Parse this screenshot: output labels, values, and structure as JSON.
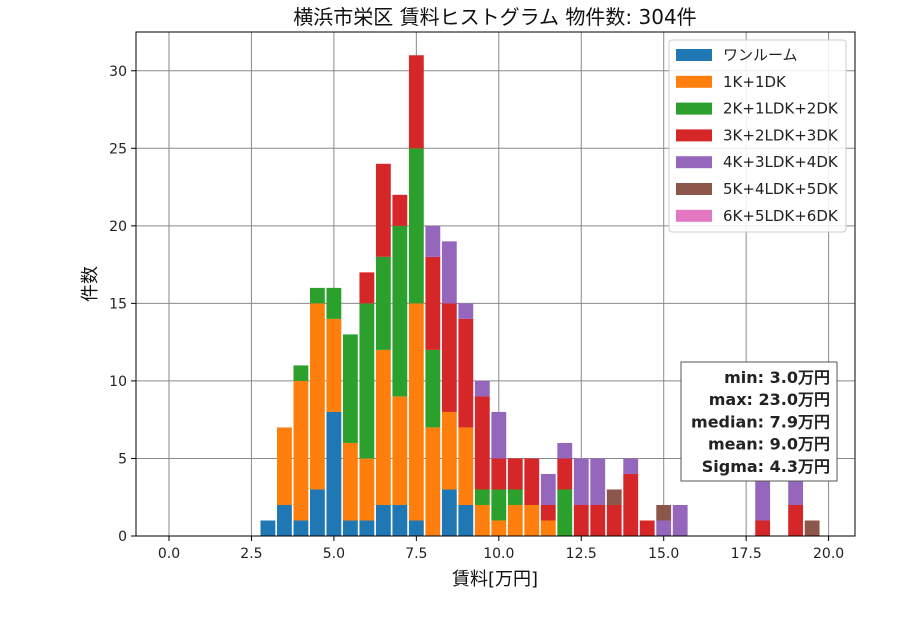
{
  "chart_data": {
    "type": "bar",
    "stacked": true,
    "title": "横浜市栄区 賃料ヒストグラム 物件数: 304件",
    "xlabel": "賃料[万円]",
    "ylabel": "件数",
    "xlim": [
      -1.0,
      20.8
    ],
    "ylim": [
      0,
      32.5
    ],
    "bin_width": 0.5,
    "grid": true,
    "legend_position": "top-right",
    "xticks": [
      0.0,
      2.5,
      5.0,
      7.5,
      10.0,
      12.5,
      15.0,
      17.5,
      20.0
    ],
    "xtick_labels": [
      "0.0",
      "2.5",
      "5.0",
      "7.5",
      "10.0",
      "12.5",
      "15.0",
      "17.5",
      "20.0"
    ],
    "yticks": [
      0,
      5,
      10,
      15,
      20,
      25,
      30
    ],
    "ytick_labels": [
      "0",
      "5",
      "10",
      "15",
      "20",
      "25",
      "30"
    ],
    "x": [
      3.0,
      3.5,
      4.0,
      4.5,
      5.0,
      5.5,
      6.0,
      6.5,
      7.0,
      7.5,
      8.0,
      8.5,
      9.0,
      9.5,
      10.0,
      10.5,
      11.0,
      11.5,
      12.0,
      12.5,
      13.0,
      13.5,
      14.0,
      14.5,
      15.0,
      15.5,
      18.0,
      19.0,
      19.5
    ],
    "series": [
      {
        "name": "ワンルーム",
        "color": "#1f77b4",
        "values": [
          1,
          2,
          1,
          3,
          8,
          1,
          1,
          2,
          2,
          1,
          0,
          3,
          2,
          0,
          0,
          0,
          0,
          0,
          0,
          0,
          0,
          0,
          0,
          0,
          0,
          0,
          0,
          0,
          0
        ]
      },
      {
        "name": "1K+1DK",
        "color": "#ff7f0e",
        "values": [
          0,
          5,
          9,
          12,
          6,
          5,
          4,
          10,
          7,
          14,
          7,
          5,
          5,
          2,
          1,
          2,
          2,
          1,
          0,
          0,
          0,
          0,
          0,
          0,
          0,
          0,
          0,
          0,
          0
        ]
      },
      {
        "name": "2K+1LDK+2DK",
        "color": "#2ca02c",
        "values": [
          0,
          0,
          1,
          1,
          2,
          7,
          10,
          6,
          11,
          10,
          5,
          0,
          0,
          1,
          2,
          1,
          0,
          0,
          3,
          0,
          0,
          0,
          0,
          0,
          0,
          0,
          0,
          0,
          0
        ]
      },
      {
        "name": "3K+2LDK+3DK",
        "color": "#d62728",
        "values": [
          0,
          0,
          0,
          0,
          0,
          0,
          2,
          6,
          2,
          6,
          6,
          7,
          7,
          6,
          2,
          2,
          3,
          1,
          2,
          2,
          2,
          2,
          4,
          1,
          0,
          0,
          1,
          2,
          0
        ]
      },
      {
        "name": "4K+3LDK+4DK",
        "color": "#9467bd",
        "values": [
          0,
          0,
          0,
          0,
          0,
          0,
          0,
          0,
          0,
          0,
          2,
          4,
          1,
          1,
          3,
          0,
          0,
          2,
          1,
          3,
          3,
          0,
          1,
          0,
          1,
          2,
          3,
          2,
          0
        ]
      },
      {
        "name": "5K+4LDK+5DK",
        "color": "#8c564b",
        "values": [
          0,
          0,
          0,
          0,
          0,
          0,
          0,
          0,
          0,
          0,
          0,
          0,
          0,
          0,
          0,
          0,
          0,
          0,
          0,
          0,
          0,
          1,
          0,
          0,
          1,
          0,
          0,
          0,
          1
        ]
      },
      {
        "name": "6K+5LDK+6DK",
        "color": "#e377c2",
        "values": [
          0,
          0,
          0,
          0,
          0,
          0,
          0,
          0,
          0,
          0,
          0,
          0,
          0,
          0,
          0,
          0,
          0,
          0,
          0,
          0,
          0,
          0,
          0,
          0,
          0,
          0,
          0,
          0,
          0
        ]
      }
    ],
    "stats": [
      "min: 3.0万円",
      "max: 23.0万円",
      "median: 7.9万円",
      "mean: 9.0万円",
      "Sigma: 4.3万円"
    ]
  }
}
